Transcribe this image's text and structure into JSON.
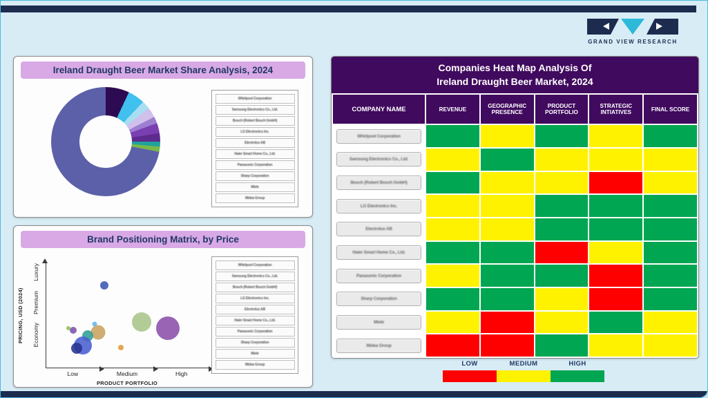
{
  "logo": {
    "text": "GRAND VIEW RESEARCH"
  },
  "companies": [
    "Whirlpool Corporation",
    "Samsung Electronics Co., Ltd.",
    "Bosch (Robert Bosch GmbH)",
    "LG Electronics Inc.",
    "Electrolux AB",
    "Haier Smart Home Co., Ltd.",
    "Panasonic Corporation",
    "Sharp Corporation",
    "Miele",
    "Midea Group"
  ],
  "chart_data": [
    {
      "type": "pie",
      "donut": true,
      "title": "Ireland Draught Beer Market Share Analysis, 2024",
      "slices": [
        {
          "name": "Whirlpool Corporation",
          "value": 7,
          "color": "#2d0b52"
        },
        {
          "name": "Samsung Electronics Co., Ltd.",
          "value": 5,
          "color": "#3fc0ee"
        },
        {
          "name": "Bosch (Robert Bosch GmbH)",
          "value": 2.5,
          "color": "#a8ddf2"
        },
        {
          "name": "LG Electronics Inc.",
          "value": 3,
          "color": "#cfc0ec"
        },
        {
          "name": "Electrolux AB",
          "value": 2,
          "color": "#9d7ed0"
        },
        {
          "name": "Haier Smart Home Co., Ltd.",
          "value": 3,
          "color": "#7a3fb0"
        },
        {
          "name": "Panasonic Corporation",
          "value": 2.5,
          "color": "#5e2b8e"
        },
        {
          "name": "Sharp Corporation",
          "value": 1.5,
          "color": "#20a39a"
        },
        {
          "name": "Miele",
          "value": 1.5,
          "color": "#79b84a"
        },
        {
          "name": "Midea Group",
          "value": 72,
          "color": "#5c60a8"
        }
      ]
    },
    {
      "type": "scatter",
      "title": "Brand Positioning Matrix, by Price",
      "xlabel": "PRODUCT PORTFOLIO",
      "ylabel": "PRICING, USD (2024)",
      "x_ticks": [
        "Low",
        "Medium",
        "High"
      ],
      "y_ticks": [
        "Economy",
        "Premium",
        "Luxury"
      ],
      "bubbles": [
        {
          "x": 36,
          "y": 21,
          "d": 12,
          "color": "#3a56b4"
        },
        {
          "x": 59,
          "y": 56,
          "d": 28,
          "color": "#a9c487"
        },
        {
          "x": 75,
          "y": 62,
          "d": 34,
          "color": "#8a4fa8"
        },
        {
          "x": 32,
          "y": 66,
          "d": 21,
          "color": "#c9a25f"
        },
        {
          "x": 26,
          "y": 69,
          "d": 16,
          "color": "#2f9e96"
        },
        {
          "x": 23,
          "y": 78,
          "d": 26,
          "color": "#4a5fd0"
        },
        {
          "x": 19,
          "y": 81,
          "d": 16,
          "color": "#27338f"
        },
        {
          "x": 17,
          "y": 64,
          "d": 10,
          "color": "#7b52ab"
        },
        {
          "x": 14,
          "y": 62,
          "d": 6,
          "color": "#8bc34a"
        },
        {
          "x": 46,
          "y": 80,
          "d": 8,
          "color": "#e09b3d"
        },
        {
          "x": 30,
          "y": 58,
          "d": 7,
          "color": "#64b5e6"
        }
      ]
    },
    {
      "type": "heatmap",
      "title_line1": "Companies Heat Map Analysis Of",
      "title_line2": "Ireland Draught Beer Market, 2024",
      "columns": [
        "COMPANY NAME",
        "REVENUE",
        "GEOGRAPHIC PRESENCE",
        "PRODUCT PORTFOLIO",
        "STRATEGIC INTIATIVES",
        "FINAL SCORE"
      ],
      "levels": {
        "low": {
          "label": "LOW",
          "color": "#fe0000"
        },
        "medium": {
          "label": "MEDIUM",
          "color": "#fff200"
        },
        "high": {
          "label": "HIGH",
          "color": "#00a651"
        }
      },
      "legend_order": [
        "low",
        "medium",
        "high"
      ],
      "rows": [
        {
          "company": "Whirlpool Corporation",
          "scores": [
            "high",
            "medium",
            "high",
            "medium",
            "high"
          ]
        },
        {
          "company": "Samsung Electronics Co., Ltd.",
          "scores": [
            "medium",
            "high",
            "medium",
            "medium",
            "medium"
          ]
        },
        {
          "company": "Bosch (Robert Bosch GmbH)",
          "scores": [
            "high",
            "medium",
            "medium",
            "low",
            "medium"
          ]
        },
        {
          "company": "LG Electronics Inc.",
          "scores": [
            "medium",
            "medium",
            "high",
            "high",
            "high"
          ]
        },
        {
          "company": "Electrolux AB",
          "scores": [
            "medium",
            "medium",
            "high",
            "high",
            "high"
          ]
        },
        {
          "company": "Haier Smart Home Co., Ltd.",
          "scores": [
            "high",
            "high",
            "low",
            "medium",
            "high"
          ]
        },
        {
          "company": "Panasonic Corporation",
          "scores": [
            "medium",
            "high",
            "high",
            "low",
            "high"
          ]
        },
        {
          "company": "Sharp Corporation",
          "scores": [
            "high",
            "high",
            "medium",
            "low",
            "high"
          ]
        },
        {
          "company": "Miele",
          "scores": [
            "medium",
            "low",
            "medium",
            "high",
            "medium"
          ]
        },
        {
          "company": "Midea Group",
          "scores": [
            "low",
            "low",
            "high",
            "medium",
            "medium"
          ]
        }
      ]
    }
  ]
}
